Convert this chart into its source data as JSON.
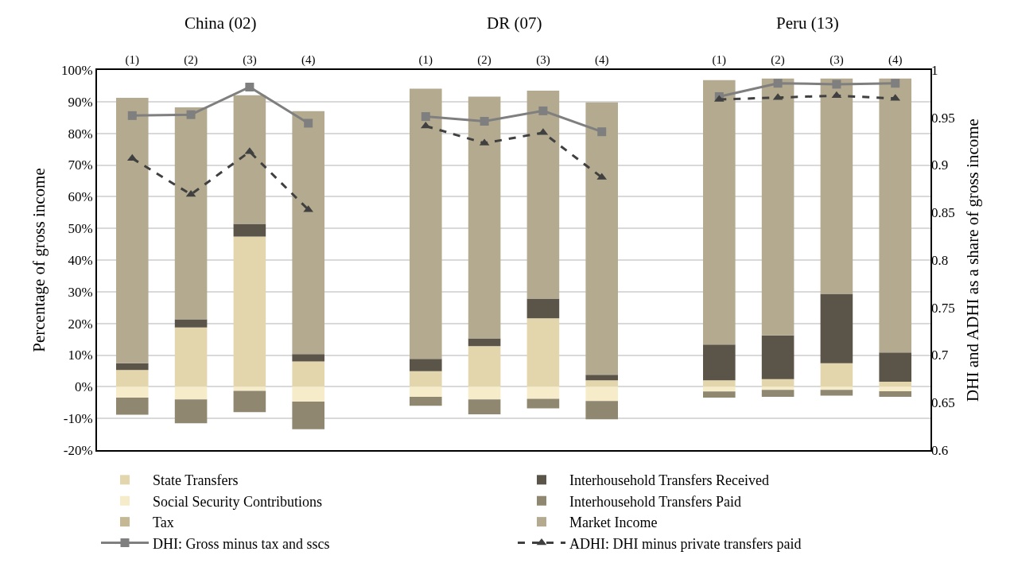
{
  "chart_data": {
    "type": "bar",
    "stacked": true,
    "annotations": [
      "China (02)",
      "DR (07)",
      "Peru (13)"
    ],
    "ylabel": "Percentage of gross income",
    "y2label": "DHI and ADHI as a share of gross income",
    "categories": [
      "(1)",
      "(2)",
      "(3)",
      "(4)",
      null,
      "(1)",
      "(2)",
      "(3)",
      "(4)",
      null,
      "(1)",
      "(2)",
      "(3)",
      "(4)"
    ],
    "series": [
      {
        "name": "State Transfers",
        "color": "#e3d6ad",
        "values": [
          5.3,
          18.7,
          47.4,
          8.0,
          null,
          4.9,
          12.8,
          21.6,
          2.0,
          null,
          2.0,
          2.4,
          7.4,
          1.6
        ]
      },
      {
        "name": "Interhousehold Transfers Received",
        "color": "#5a5548",
        "values": [
          2.1,
          2.6,
          4.0,
          2.3,
          null,
          3.9,
          2.5,
          6.2,
          1.8,
          null,
          11.3,
          13.8,
          21.9,
          9.2
        ]
      },
      {
        "name": "Social Security Contributions",
        "color": "#f6ecc9",
        "values": [
          -3.4,
          -4.0,
          -1.3,
          -4.7,
          null,
          -3.2,
          -4.0,
          -3.8,
          -4.5,
          null,
          -1.5,
          -1.0,
          -1.0,
          -1.4
        ]
      },
      {
        "name": "Interhousehold Transfers Paid",
        "color": "#8f876f",
        "values": [
          -5.4,
          -7.5,
          -6.7,
          -8.7,
          null,
          -2.8,
          -4.7,
          -3.0,
          -5.8,
          null,
          -1.9,
          -2.2,
          -1.8,
          -1.8
        ]
      },
      {
        "name": "Tax",
        "color": "#c4b994",
        "values": [
          0,
          0,
          0,
          0,
          null,
          0,
          0,
          0,
          0,
          null,
          0,
          0,
          0,
          0
        ]
      },
      {
        "name": "Market Income",
        "color": "#b3aa8f",
        "values": [
          83.8,
          66.9,
          40.6,
          76.7,
          null,
          85.3,
          76.3,
          65.7,
          86.0,
          null,
          83.5,
          81.1,
          68.0,
          86.5
        ]
      },
      {
        "name": "DHI: Gross minus tax and sscs",
        "type": "line",
        "axis": "y2",
        "color": "#7f7f7f",
        "marker": "square",
        "line_style": "solid",
        "values": [
          0.952,
          0.953,
          0.982,
          0.944,
          null,
          0.951,
          0.946,
          0.957,
          0.935,
          null,
          0.972,
          0.986,
          0.985,
          0.986
        ]
      },
      {
        "name": "ADHI: DHI minus private transfers paid",
        "type": "line",
        "axis": "y2",
        "color": "#404040",
        "marker": "triangle",
        "line_style": "dashed",
        "values": [
          0.907,
          0.869,
          0.914,
          0.853,
          null,
          0.941,
          0.923,
          0.934,
          0.887,
          null,
          0.969,
          0.971,
          0.973,
          0.97
        ]
      }
    ],
    "ylim": [
      -20,
      100
    ],
    "yticks": [
      {
        "value": -20,
        "label": "-20%"
      },
      {
        "value": -10,
        "label": "-10%"
      },
      {
        "value": 0,
        "label": "0%"
      },
      {
        "value": 10,
        "label": "10%"
      },
      {
        "value": 20,
        "label": "20%"
      },
      {
        "value": 30,
        "label": "30%"
      },
      {
        "value": 40,
        "label": "40%"
      },
      {
        "value": 50,
        "label": "50%"
      },
      {
        "value": 60,
        "label": "60%"
      },
      {
        "value": 70,
        "label": "70%"
      },
      {
        "value": 80,
        "label": "80%"
      },
      {
        "value": 90,
        "label": "90%"
      },
      {
        "value": 100,
        "label": "100%"
      }
    ],
    "y2lim": [
      0.6,
      1
    ],
    "y2ticks": [
      0.6,
      0.65,
      0.7,
      0.75,
      0.8,
      0.85,
      0.9,
      0.95,
      1
    ],
    "grid": "y",
    "legend": "bottom"
  }
}
